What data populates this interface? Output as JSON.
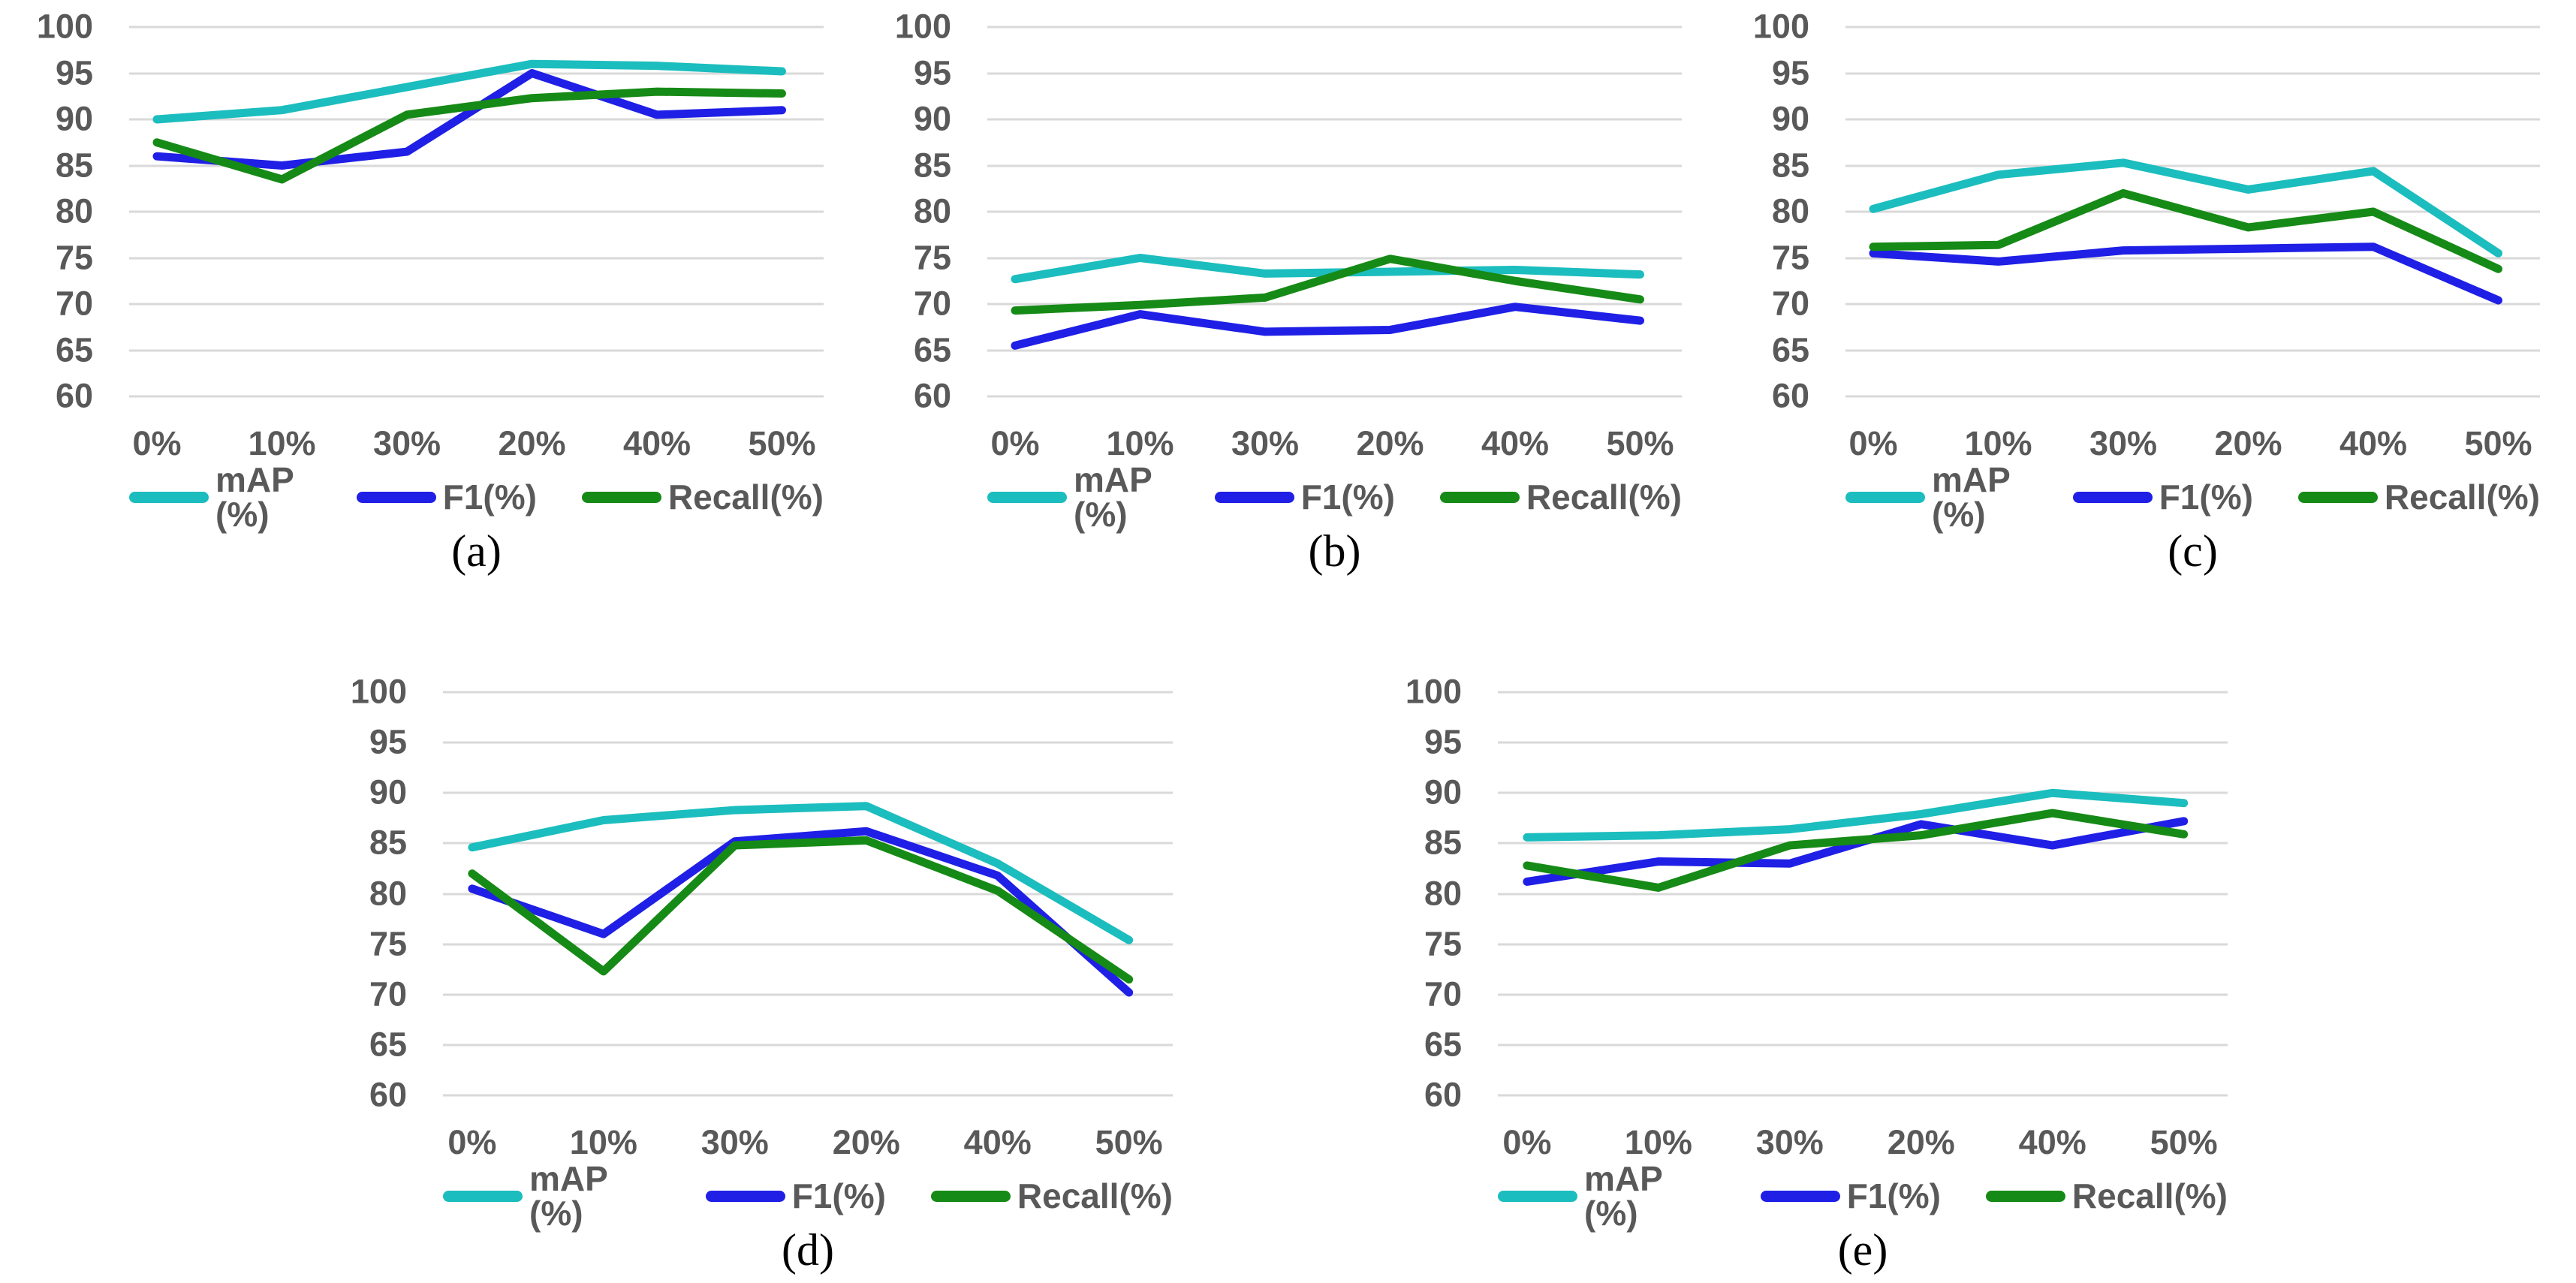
{
  "page": {
    "background": "#FFFFFF"
  },
  "styles": {
    "tick_text_color": "#595959",
    "gridline_color": "#D9D9D9",
    "map_color": "#1CBDBE",
    "f1_color": "#1F1FE6",
    "recall_color": "#168A16"
  },
  "chart_data": [
    {
      "id": "a",
      "type": "line",
      "caption": "(a)",
      "categories": [
        "0%",
        "10%",
        "30%",
        "20%",
        "40%",
        "50%"
      ],
      "ylim": [
        60,
        100
      ],
      "y_ticks": [
        100,
        95,
        90,
        85,
        80,
        75,
        70,
        65,
        60
      ],
      "grid": true,
      "legend_position": "bottom",
      "series": [
        {
          "key": "map",
          "name": "mAP (%)",
          "color": "#1CBDBE",
          "values": [
            90,
            91,
            93.5,
            96,
            95.8,
            95.2
          ]
        },
        {
          "key": "f1",
          "name": "F1(%)",
          "color": "#1F1FE6",
          "values": [
            86,
            85,
            86.5,
            95,
            90.5,
            91
          ]
        },
        {
          "key": "recall",
          "name": "Recall(%)",
          "color": "#168A16",
          "values": [
            87.5,
            83.5,
            90.5,
            92.3,
            93,
            92.8
          ]
        }
      ]
    },
    {
      "id": "b",
      "type": "line",
      "caption": "(b)",
      "categories": [
        "0%",
        "10%",
        "30%",
        "20%",
        "40%",
        "50%"
      ],
      "ylim": [
        60,
        100
      ],
      "y_ticks": [
        100,
        95,
        90,
        85,
        80,
        75,
        70,
        65,
        60
      ],
      "grid": true,
      "legend_position": "bottom",
      "series": [
        {
          "key": "map",
          "name": "mAP (%)",
          "color": "#1CBDBE",
          "values": [
            72.7,
            75,
            73.3,
            73.5,
            73.7,
            73.2
          ]
        },
        {
          "key": "f1",
          "name": "F1(%)",
          "color": "#1F1FE6",
          "values": [
            65.5,
            68.9,
            67,
            67.2,
            69.7,
            68.2
          ]
        },
        {
          "key": "recall",
          "name": "Recall(%)",
          "color": "#168A16",
          "values": [
            69.3,
            69.9,
            70.7,
            74.9,
            72.5,
            70.5
          ]
        }
      ]
    },
    {
      "id": "c",
      "type": "line",
      "caption": "(c)",
      "categories": [
        "0%",
        "10%",
        "30%",
        "20%",
        "40%",
        "50%"
      ],
      "ylim": [
        60,
        100
      ],
      "y_ticks": [
        100,
        95,
        90,
        85,
        80,
        75,
        70,
        65,
        60
      ],
      "grid": true,
      "legend_position": "bottom",
      "series": [
        {
          "key": "map",
          "name": "mAP (%)",
          "color": "#1CBDBE",
          "values": [
            80.3,
            84,
            85.3,
            82.4,
            84.4,
            75.5
          ]
        },
        {
          "key": "f1",
          "name": "F1(%)",
          "color": "#1F1FE6",
          "values": [
            75.5,
            74.6,
            75.8,
            76,
            76.2,
            70.4
          ]
        },
        {
          "key": "recall",
          "name": "Recall(%)",
          "color": "#168A16",
          "values": [
            76.2,
            76.4,
            82,
            78.3,
            80,
            73.8
          ]
        }
      ]
    },
    {
      "id": "d",
      "type": "line",
      "caption": "(d)",
      "categories": [
        "0%",
        "10%",
        "30%",
        "20%",
        "40%",
        "50%"
      ],
      "ylim": [
        60,
        100
      ],
      "y_ticks": [
        100,
        95,
        90,
        85,
        80,
        75,
        70,
        65,
        60
      ],
      "grid": true,
      "legend_position": "bottom",
      "series": [
        {
          "key": "map",
          "name": "mAP (%)",
          "color": "#1CBDBE",
          "values": [
            84.6,
            87.3,
            88.3,
            88.7,
            83,
            75.4
          ]
        },
        {
          "key": "f1",
          "name": "F1(%)",
          "color": "#1F1FE6",
          "values": [
            80.5,
            76,
            85.2,
            86.2,
            81.8,
            70.2
          ]
        },
        {
          "key": "recall",
          "name": "Recall(%)",
          "color": "#168A16",
          "values": [
            82,
            72.3,
            84.8,
            85.3,
            80.3,
            71.5
          ]
        }
      ]
    },
    {
      "id": "e",
      "type": "line",
      "caption": "(e)",
      "categories": [
        "0%",
        "10%",
        "30%",
        "20%",
        "40%",
        "50%"
      ],
      "ylim": [
        60,
        100
      ],
      "y_ticks": [
        100,
        95,
        90,
        85,
        80,
        75,
        70,
        65,
        60
      ],
      "grid": true,
      "legend_position": "bottom",
      "series": [
        {
          "key": "map",
          "name": "mAP (%)",
          "color": "#1CBDBE",
          "values": [
            85.6,
            85.8,
            86.4,
            87.9,
            90,
            89
          ]
        },
        {
          "key": "f1",
          "name": "F1(%)",
          "color": "#1F1FE6",
          "values": [
            81.2,
            83.2,
            83,
            86.9,
            84.8,
            87.2
          ]
        },
        {
          "key": "recall",
          "name": "Recall(%)",
          "color": "#168A16",
          "values": [
            82.8,
            80.6,
            84.8,
            85.8,
            88,
            85.9
          ]
        }
      ]
    }
  ]
}
